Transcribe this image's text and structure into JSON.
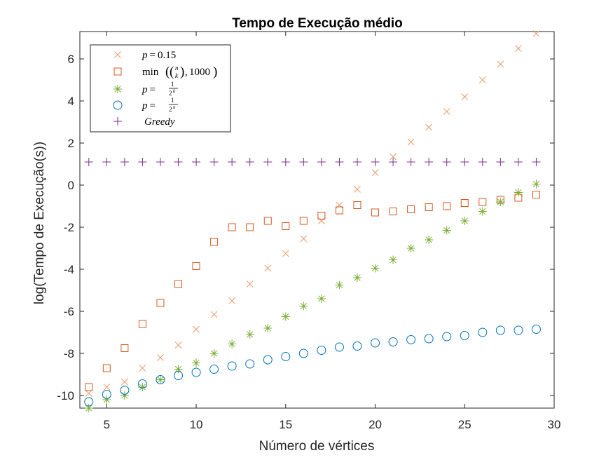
{
  "chart_data": {
    "type": "scatter",
    "title": "Tempo de Execução médio",
    "xlabel": "Número de vértices",
    "ylabel": "log(Tempo de Execução(s))",
    "xlim": [
      3.5,
      30
    ],
    "ylim": [
      -10.6,
      7.3
    ],
    "xticks": [
      5,
      10,
      15,
      20,
      25,
      30
    ],
    "yticks": [
      -10,
      -8,
      -6,
      -4,
      -2,
      0,
      2,
      4,
      6
    ],
    "grid": false,
    "legend_position": "top-left",
    "x": [
      4,
      5,
      6,
      7,
      8,
      9,
      10,
      11,
      12,
      13,
      14,
      15,
      16,
      17,
      18,
      19,
      20,
      21,
      22,
      23,
      24,
      25,
      26,
      27,
      28,
      29
    ],
    "series": [
      {
        "name": "p = 0.15",
        "legend_latex": "p=0.15",
        "marker": "x",
        "color": "#ec9b6c",
        "values": [
          -9.9,
          -9.6,
          -9.35,
          -8.7,
          -8.2,
          -7.6,
          -6.85,
          -6.15,
          -5.5,
          -4.7,
          -3.95,
          -3.25,
          -2.55,
          -1.7,
          -0.95,
          -0.2,
          0.6,
          1.35,
          2.05,
          2.75,
          3.5,
          4.2,
          5.0,
          5.75,
          6.5,
          7.2
        ]
      },
      {
        "name": "min((n k),1000)",
        "legend_latex": "\\min\\left(\\binom{n}{k},1000\\right)",
        "marker": "square",
        "color": "#d4581f",
        "values": [
          -9.6,
          -8.7,
          -7.75,
          -6.6,
          -5.6,
          -4.7,
          -3.85,
          -2.7,
          -2.0,
          -2.0,
          -1.7,
          -1.95,
          -1.7,
          -1.45,
          -1.2,
          -0.95,
          -1.3,
          -1.25,
          -1.15,
          -1.05,
          -1.0,
          -0.85,
          -0.8,
          -0.7,
          -0.6,
          -0.45
        ]
      },
      {
        "name": "p = 1/2^k",
        "legend_latex": "p=\\frac{1}{2^k}",
        "marker": "asterisk",
        "color": "#77ac30",
        "values": [
          -10.6,
          -10.2,
          -10.0,
          -9.6,
          -9.25,
          -8.75,
          -8.45,
          -8.0,
          -7.55,
          -7.1,
          -6.8,
          -6.25,
          -5.75,
          -5.4,
          -4.75,
          -4.4,
          -3.95,
          -3.55,
          -3.0,
          -2.6,
          -2.15,
          -1.7,
          -1.25,
          -0.8,
          -0.35,
          0.05
        ]
      },
      {
        "name": "p = 1/2^n",
        "legend_latex": "p=\\frac{1}{2^n}",
        "marker": "circle",
        "color": "#0072bd",
        "values": [
          -10.3,
          -9.95,
          -9.75,
          -9.45,
          -9.25,
          -9.05,
          -8.9,
          -8.75,
          -8.6,
          -8.5,
          -8.3,
          -8.15,
          -8.0,
          -7.85,
          -7.7,
          -7.65,
          -7.5,
          -7.45,
          -7.35,
          -7.3,
          -7.2,
          -7.15,
          -7.0,
          -6.9,
          -6.9,
          -6.85
        ]
      },
      {
        "name": "Greedy",
        "legend_latex": "Greedy",
        "marker": "plus",
        "color": "#7e2f8e",
        "values": [
          1.1,
          1.1,
          1.1,
          1.1,
          1.1,
          1.1,
          1.1,
          1.1,
          1.1,
          1.1,
          1.1,
          1.1,
          1.1,
          1.1,
          1.1,
          1.1,
          1.1,
          1.1,
          1.1,
          1.1,
          1.1,
          1.1,
          1.1,
          1.1,
          1.1,
          1.1
        ]
      }
    ]
  }
}
